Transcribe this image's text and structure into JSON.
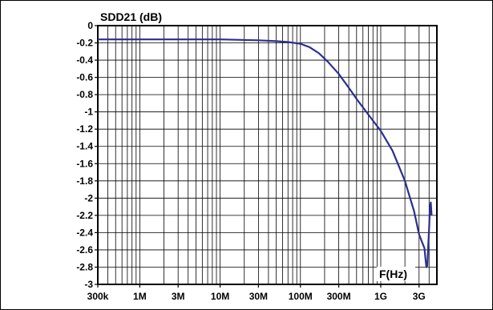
{
  "chart_data": {
    "type": "line",
    "title": "SDD21 (dB)",
    "xlabel": "F(Hz)",
    "ylabel": "SDD21 (dB)",
    "x_scale": "log",
    "xlim": [
      300000,
      5000000000
    ],
    "ylim": [
      -3,
      0
    ],
    "y_ticks": [
      0,
      -0.2,
      -0.4,
      -0.6,
      -0.8,
      -1,
      -1.2,
      -1.4,
      -1.6,
      -1.8,
      -2,
      -2.2,
      -2.4,
      -2.6,
      -2.8,
      -3
    ],
    "y_tick_labels": [
      "0",
      "-0.2",
      "-0.4",
      "-0.6",
      "-0.8",
      "-1",
      "-1.2",
      "-1.4",
      "-1.6",
      "-1.8",
      "-2",
      "-2.2",
      "-2.4",
      "-2.6",
      "-2.8",
      "-3"
    ],
    "x_ticks": [
      300000,
      1000000,
      3000000,
      10000000,
      30000000,
      100000000,
      300000000,
      1000000000,
      3000000000
    ],
    "x_tick_labels": [
      "300k",
      "1M",
      "3M",
      "10M",
      "30M",
      "100M",
      "300M",
      "1G",
      "3G"
    ],
    "grid": true,
    "series": [
      {
        "color": "#2b2f8f",
        "x": [
          300000,
          1000000,
          3000000,
          10000000,
          30000000,
          50000000,
          70000000,
          100000000,
          130000000,
          170000000,
          220000000,
          300000000,
          400000000,
          500000000,
          700000000,
          1000000000,
          1400000000,
          2000000000,
          2600000000,
          3000000000,
          3300000000,
          3500000000,
          3600000000,
          3700000000,
          3800000000,
          3900000000,
          4000000000,
          4100000000,
          4200000000,
          4300000000
        ],
        "y": [
          -0.16,
          -0.16,
          -0.16,
          -0.16,
          -0.17,
          -0.18,
          -0.19,
          -0.21,
          -0.25,
          -0.32,
          -0.42,
          -0.56,
          -0.72,
          -0.85,
          -1.03,
          -1.22,
          -1.45,
          -1.8,
          -2.15,
          -2.42,
          -2.52,
          -2.58,
          -2.7,
          -2.8,
          -2.78,
          -2.55,
          -2.35,
          -2.1,
          -2.05,
          -2.2
        ]
      }
    ]
  }
}
